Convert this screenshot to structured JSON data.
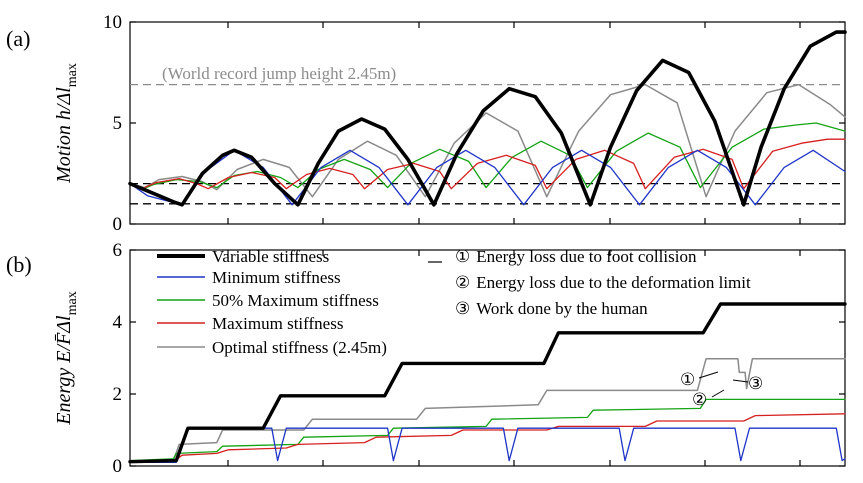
{
  "chart_data": [
    {
      "type": "line",
      "panel_label": "(a)",
      "ylabel": "Motion  h/Δl",
      "ylabel_sub": "max",
      "ylim": [
        0,
        10
      ],
      "yticks": [
        0,
        5,
        10
      ],
      "grid": false,
      "reference_lines": [
        {
          "y": 6.9,
          "label": "(World record jump height  2.45m)",
          "color": "#8c8c8c",
          "style": "dashed"
        },
        {
          "y": 2.0,
          "color": "#000000",
          "style": "dashed"
        },
        {
          "y": 1.0,
          "color": "#000000",
          "style": "dashed"
        }
      ],
      "series": [
        {
          "key": "variable",
          "color": "#000000",
          "width": 3.6,
          "points": [
            [
              0,
              2
            ],
            [
              0.5,
              1.7
            ],
            [
              1,
              1.4
            ],
            [
              1.5,
              1.1
            ],
            [
              1.8,
              0.95
            ],
            [
              2.5,
              2.5
            ],
            [
              3.2,
              3.4
            ],
            [
              3.6,
              3.65
            ],
            [
              4.2,
              3.3
            ],
            [
              5,
              2
            ],
            [
              5.8,
              0.95
            ],
            [
              6.5,
              3
            ],
            [
              7.2,
              4.6
            ],
            [
              8,
              5.2
            ],
            [
              8.8,
              4.7
            ],
            [
              9.6,
              3.2
            ],
            [
              10.5,
              0.95
            ],
            [
              11.3,
              3.5
            ],
            [
              12.2,
              5.6
            ],
            [
              13.1,
              6.7
            ],
            [
              14,
              6.3
            ],
            [
              14.9,
              4.5
            ],
            [
              15.9,
              0.95
            ],
            [
              16.6,
              3.8
            ],
            [
              17.5,
              6.6
            ],
            [
              18.4,
              8.1
            ],
            [
              19.3,
              7.5
            ],
            [
              20.2,
              5.1
            ],
            [
              21.2,
              0.95
            ],
            [
              21.8,
              3.8
            ],
            [
              22.6,
              6.7
            ],
            [
              23.5,
              8.8
            ],
            [
              24.4,
              9.5
            ],
            [
              24.7,
              9.5
            ]
          ]
        },
        {
          "key": "minimum",
          "color": "#1f35c8",
          "width": 1.3,
          "points": [
            [
              0,
              2
            ],
            [
              0.6,
              1.4
            ],
            [
              1.8,
              0.95
            ],
            [
              2.6,
              2.6
            ],
            [
              3.6,
              3.65
            ],
            [
              4.6,
              2.8
            ],
            [
              5.6,
              0.95
            ],
            [
              6.6,
              2.8
            ],
            [
              7.6,
              3.65
            ],
            [
              8.6,
              2.8
            ],
            [
              9.6,
              0.95
            ],
            [
              10.6,
              2.8
            ],
            [
              11.6,
              3.65
            ],
            [
              12.6,
              2.8
            ],
            [
              13.6,
              0.95
            ],
            [
              14.6,
              2.8
            ],
            [
              15.6,
              3.65
            ],
            [
              16.6,
              2.8
            ],
            [
              17.6,
              0.95
            ],
            [
              18.6,
              2.8
            ],
            [
              19.6,
              3.65
            ],
            [
              20.6,
              2.8
            ],
            [
              21.6,
              0.95
            ],
            [
              22.6,
              2.8
            ],
            [
              23.6,
              3.65
            ],
            [
              24.7,
              2.6
            ]
          ]
        },
        {
          "key": "half_max",
          "color": "#14a314",
          "width": 1.3,
          "points": [
            [
              0,
              2
            ],
            [
              0.4,
              1.7
            ],
            [
              0.8,
              1.95
            ],
            [
              1.6,
              2.2
            ],
            [
              2.4,
              2.1
            ],
            [
              3.0,
              1.8
            ],
            [
              3.6,
              2.4
            ],
            [
              4.4,
              2.6
            ],
            [
              5.2,
              2.3
            ],
            [
              5.8,
              1.8
            ],
            [
              6.5,
              2.7
            ],
            [
              7.4,
              3.2
            ],
            [
              8.3,
              2.7
            ],
            [
              8.9,
              1.8
            ],
            [
              9.7,
              3.0
            ],
            [
              10.7,
              3.7
            ],
            [
              11.7,
              3.1
            ],
            [
              12.3,
              1.8
            ],
            [
              13.2,
              3.3
            ],
            [
              14.2,
              4.1
            ],
            [
              15.2,
              3.4
            ],
            [
              15.8,
              1.8
            ],
            [
              16.8,
              3.6
            ],
            [
              17.9,
              4.5
            ],
            [
              19.0,
              3.8
            ],
            [
              19.7,
              1.8
            ],
            [
              20.8,
              3.8
            ],
            [
              21.9,
              4.7
            ],
            [
              23.0,
              4.9
            ],
            [
              23.7,
              5.0
            ],
            [
              24.7,
              4.6
            ]
          ]
        },
        {
          "key": "max",
          "color": "#d6201f",
          "width": 1.3,
          "points": [
            [
              0,
              2
            ],
            [
              0.4,
              1.75
            ],
            [
              0.9,
              2.05
            ],
            [
              1.7,
              2.25
            ],
            [
              2.3,
              2.0
            ],
            [
              2.7,
              1.75
            ],
            [
              3.4,
              2.3
            ],
            [
              4.2,
              2.55
            ],
            [
              5.0,
              2.3
            ],
            [
              5.4,
              1.75
            ],
            [
              6.1,
              2.45
            ],
            [
              6.9,
              2.75
            ],
            [
              7.7,
              2.45
            ],
            [
              8.1,
              1.75
            ],
            [
              8.9,
              2.7
            ],
            [
              9.8,
              3.0
            ],
            [
              10.7,
              2.6
            ],
            [
              11.1,
              1.75
            ],
            [
              12.0,
              3.0
            ],
            [
              13.0,
              3.4
            ],
            [
              14.0,
              2.9
            ],
            [
              14.4,
              1.75
            ],
            [
              15.4,
              3.2
            ],
            [
              16.4,
              3.65
            ],
            [
              17.4,
              3.0
            ],
            [
              17.8,
              1.75
            ],
            [
              18.8,
              3.3
            ],
            [
              19.8,
              3.7
            ],
            [
              20.8,
              3.2
            ],
            [
              21.2,
              1.75
            ],
            [
              22.2,
              3.6
            ],
            [
              23.2,
              4.0
            ],
            [
              24.1,
              4.2
            ],
            [
              24.7,
              4.2
            ]
          ]
        },
        {
          "key": "optimal",
          "color": "#8a8a8a",
          "width": 1.5,
          "points": [
            [
              0,
              2
            ],
            [
              0.5,
              1.8
            ],
            [
              1.0,
              2.2
            ],
            [
              1.8,
              2.35
            ],
            [
              2.5,
              2.1
            ],
            [
              3.0,
              1.7
            ],
            [
              3.7,
              2.7
            ],
            [
              4.6,
              3.2
            ],
            [
              5.5,
              2.8
            ],
            [
              6.3,
              1.35
            ],
            [
              7.2,
              3.2
            ],
            [
              8.2,
              4.1
            ],
            [
              9.2,
              3.4
            ],
            [
              10.2,
              1.35
            ],
            [
              11.2,
              4.0
            ],
            [
              12.3,
              5.5
            ],
            [
              13.4,
              4.6
            ],
            [
              14.4,
              1.35
            ],
            [
              15.5,
              4.6
            ],
            [
              16.6,
              6.4
            ],
            [
              17.8,
              6.9
            ],
            [
              18.9,
              6.0
            ],
            [
              19.9,
              1.35
            ],
            [
              20.9,
              4.6
            ],
            [
              22.0,
              6.5
            ],
            [
              23.1,
              6.9
            ],
            [
              24.2,
              5.9
            ],
            [
              24.7,
              5.3
            ]
          ]
        }
      ]
    },
    {
      "type": "line",
      "panel_label": "(b)",
      "ylabel": "Energy  E/F̄Δl",
      "ylabel_sub": "max",
      "ylim": [
        0,
        6
      ],
      "yticks": [
        0,
        2,
        4,
        6
      ],
      "grid": false,
      "legend": {
        "placement": "top-left",
        "entries": [
          {
            "key": "variable",
            "label": "Variable stiffness"
          },
          {
            "key": "minimum",
            "label": "Minimum stiffness"
          },
          {
            "key": "half_max",
            "label": "50% Maximum stiffness"
          },
          {
            "key": "max",
            "label": "Maximum stiffness"
          },
          {
            "key": "optimal",
            "label": "Optimal stiffness (2.45m)"
          }
        ]
      },
      "notes": [
        {
          "num": "①",
          "text": "Energy loss due to foot collision"
        },
        {
          "num": "②",
          "text": "Energy loss due to the deformation limit"
        },
        {
          "num": "③",
          "text": "Work done by the human"
        }
      ],
      "series": [
        {
          "key": "variable",
          "color": "#000000",
          "width": 3.4,
          "points": [
            [
              0,
              0.12
            ],
            [
              1.6,
              0.15
            ],
            [
              2.0,
              1.05
            ],
            [
              4.6,
              1.05
            ],
            [
              5.2,
              1.95
            ],
            [
              8.8,
              1.95
            ],
            [
              9.4,
              2.85
            ],
            [
              14.3,
              2.85
            ],
            [
              14.8,
              3.7
            ],
            [
              19.8,
              3.7
            ],
            [
              20.4,
              4.5
            ],
            [
              24.7,
              4.5
            ]
          ]
        },
        {
          "key": "minimum",
          "color": "#1f35c8",
          "width": 1.3,
          "points": [
            [
              0,
              0.1
            ],
            [
              1.6,
              0.1
            ],
            [
              2.0,
              1.05
            ],
            [
              4.9,
              1.05
            ],
            [
              5.1,
              0.15
            ],
            [
              5.4,
              1.05
            ],
            [
              8.9,
              1.05
            ],
            [
              9.1,
              0.15
            ],
            [
              9.4,
              1.05
            ],
            [
              12.9,
              1.05
            ],
            [
              13.1,
              0.15
            ],
            [
              13.4,
              1.05
            ],
            [
              16.9,
              1.05
            ],
            [
              17.1,
              0.15
            ],
            [
              17.4,
              1.05
            ],
            [
              20.9,
              1.05
            ],
            [
              21.1,
              0.15
            ],
            [
              21.4,
              1.05
            ],
            [
              24.4,
              1.05
            ],
            [
              24.6,
              0.15
            ],
            [
              24.7,
              0.2
            ]
          ]
        },
        {
          "key": "half_max",
          "color": "#14a314",
          "width": 1.3,
          "points": [
            [
              0,
              0.15
            ],
            [
              1.5,
              0.2
            ],
            [
              1.6,
              0.35
            ],
            [
              3.0,
              0.4
            ],
            [
              3.2,
              0.55
            ],
            [
              5.8,
              0.6
            ],
            [
              6.0,
              0.8
            ],
            [
              8.9,
              0.85
            ],
            [
              9.1,
              1.05
            ],
            [
              12.3,
              1.1
            ],
            [
              12.5,
              1.3
            ],
            [
              15.8,
              1.35
            ],
            [
              16.0,
              1.55
            ],
            [
              19.7,
              1.6
            ],
            [
              19.9,
              1.85
            ],
            [
              24.7,
              1.85
            ]
          ]
        },
        {
          "key": "max",
          "color": "#d6201f",
          "width": 1.3,
          "points": [
            [
              0,
              0.1
            ],
            [
              1.5,
              0.12
            ],
            [
              1.8,
              0.3
            ],
            [
              3.0,
              0.35
            ],
            [
              3.4,
              0.45
            ],
            [
              5.4,
              0.5
            ],
            [
              5.8,
              0.6
            ],
            [
              8.1,
              0.65
            ],
            [
              8.5,
              0.8
            ],
            [
              11.1,
              0.85
            ],
            [
              11.5,
              1.0
            ],
            [
              14.4,
              1.0
            ],
            [
              14.8,
              1.1
            ],
            [
              17.8,
              1.1
            ],
            [
              18.2,
              1.25
            ],
            [
              21.2,
              1.25
            ],
            [
              21.6,
              1.4
            ],
            [
              24.7,
              1.45
            ]
          ]
        },
        {
          "key": "optimal",
          "color": "#8a8a8a",
          "width": 1.5,
          "points": [
            [
              0,
              0.12
            ],
            [
              1.5,
              0.15
            ],
            [
              1.7,
              0.6
            ],
            [
              3.0,
              0.65
            ],
            [
              3.2,
              1.0
            ],
            [
              6.0,
              1.0
            ],
            [
              6.3,
              1.3
            ],
            [
              9.9,
              1.3
            ],
            [
              10.2,
              1.6
            ],
            [
              14.1,
              1.7
            ],
            [
              14.4,
              2.1
            ],
            [
              19.6,
              2.1
            ],
            [
              19.9,
              2.98
            ],
            [
              21.0,
              2.98
            ],
            [
              21.05,
              2.6
            ],
            [
              21.25,
              2.6
            ],
            [
              21.3,
              2.15
            ],
            [
              21.5,
              2.98
            ],
            [
              24.7,
              2.98
            ]
          ]
        }
      ]
    }
  ]
}
